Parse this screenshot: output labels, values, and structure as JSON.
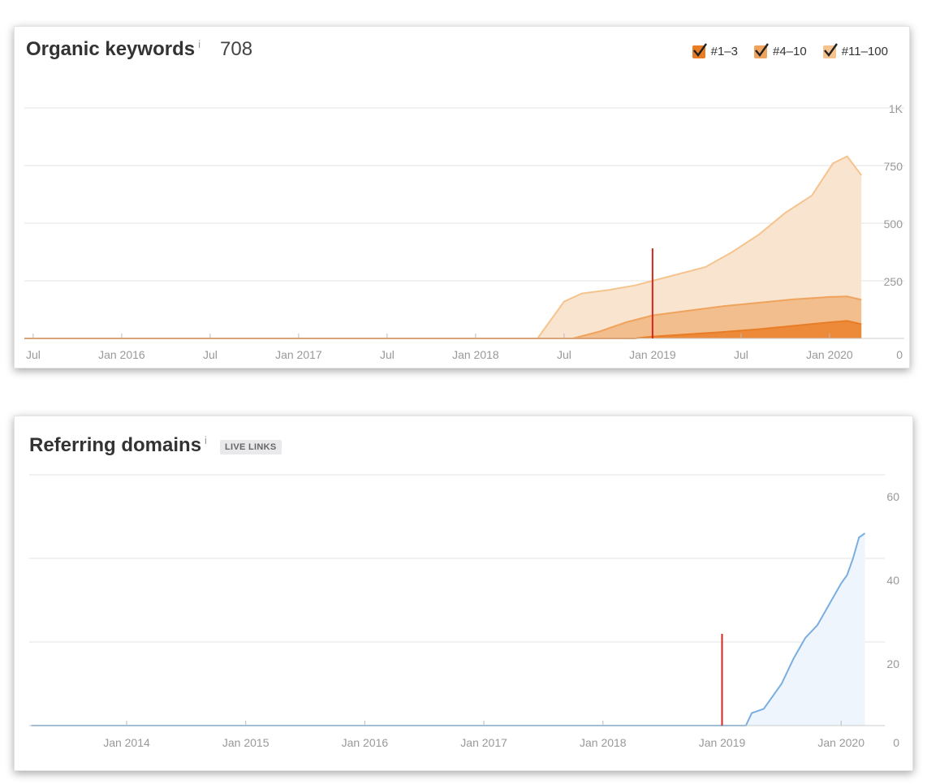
{
  "organic": {
    "title": "Organic keywords",
    "info": "i",
    "total": "708",
    "legend": [
      {
        "label": "#1–3",
        "color": "#e87d26"
      },
      {
        "label": "#4–10",
        "color": "#efa35c"
      },
      {
        "label": "#11–100",
        "color": "#f5c48e"
      }
    ]
  },
  "referring": {
    "title": "Referring domains",
    "info": "i",
    "badge": "LIVE LINKS"
  },
  "chart_data": [
    {
      "type": "area",
      "title": "Organic keywords",
      "x_ticks": [
        "Jul",
        "Jan 2016",
        "Jul",
        "Jan 2017",
        "Jul",
        "Jan 2018",
        "Jul",
        "Jan 2019",
        "Jul",
        "Jan 2020"
      ],
      "y_ticks": [
        "1K",
        "750",
        "500",
        "250",
        "0"
      ],
      "ylim": [
        0,
        1000
      ],
      "grid": true,
      "marker_x": 2019.0,
      "series": [
        {
          "name": "#11–100",
          "color": "#f5c48e",
          "fill": "#f9e4d0",
          "x": [
            2015.45,
            2018.35,
            2018.5,
            2018.6,
            2018.75,
            2018.9,
            2019.0,
            2019.15,
            2019.3,
            2019.45,
            2019.6,
            2019.75,
            2019.9,
            2020.02,
            2020.1,
            2020.18
          ],
          "y": [
            0,
            0,
            160,
            195,
            210,
            230,
            250,
            280,
            310,
            375,
            450,
            545,
            620,
            760,
            790,
            708
          ]
        },
        {
          "name": "#4–10",
          "color": "#efa35c",
          "fill": "#f2be8e",
          "x": [
            2015.45,
            2018.55,
            2018.7,
            2018.85,
            2019.0,
            2019.2,
            2019.4,
            2019.6,
            2019.8,
            2020.0,
            2020.1,
            2020.18
          ],
          "y": [
            0,
            0,
            30,
            70,
            100,
            120,
            140,
            155,
            170,
            180,
            182,
            168
          ]
        },
        {
          "name": "#1–3",
          "color": "#e87d26",
          "fill": "#ec8a3a",
          "x": [
            2015.45,
            2018.9,
            2019.0,
            2019.2,
            2019.4,
            2019.6,
            2019.8,
            2020.0,
            2020.1,
            2020.18
          ],
          "y": [
            0,
            0,
            8,
            18,
            28,
            40,
            55,
            70,
            76,
            62
          ]
        }
      ]
    },
    {
      "type": "area",
      "title": "Referring domains",
      "x_ticks": [
        "Jan 2014",
        "Jan 2015",
        "Jan 2016",
        "Jan 2017",
        "Jan 2018",
        "Jan 2019",
        "Jan 2020"
      ],
      "y_ticks": [
        "60",
        "40",
        "20",
        "0"
      ],
      "ylim": [
        0,
        60
      ],
      "grid": true,
      "marker_x": 2019.0,
      "series": [
        {
          "name": "Referring domains",
          "color": "#7aaee0",
          "fill": "#eef5fc",
          "x": [
            2013.2,
            2019.2,
            2019.25,
            2019.35,
            2019.5,
            2019.6,
            2019.7,
            2019.8,
            2019.9,
            2020.0,
            2020.05,
            2020.1,
            2020.15,
            2020.2
          ],
          "y": [
            0,
            0,
            3,
            4,
            10,
            16,
            21,
            24,
            29,
            34,
            36,
            40,
            45,
            46
          ]
        }
      ]
    }
  ]
}
